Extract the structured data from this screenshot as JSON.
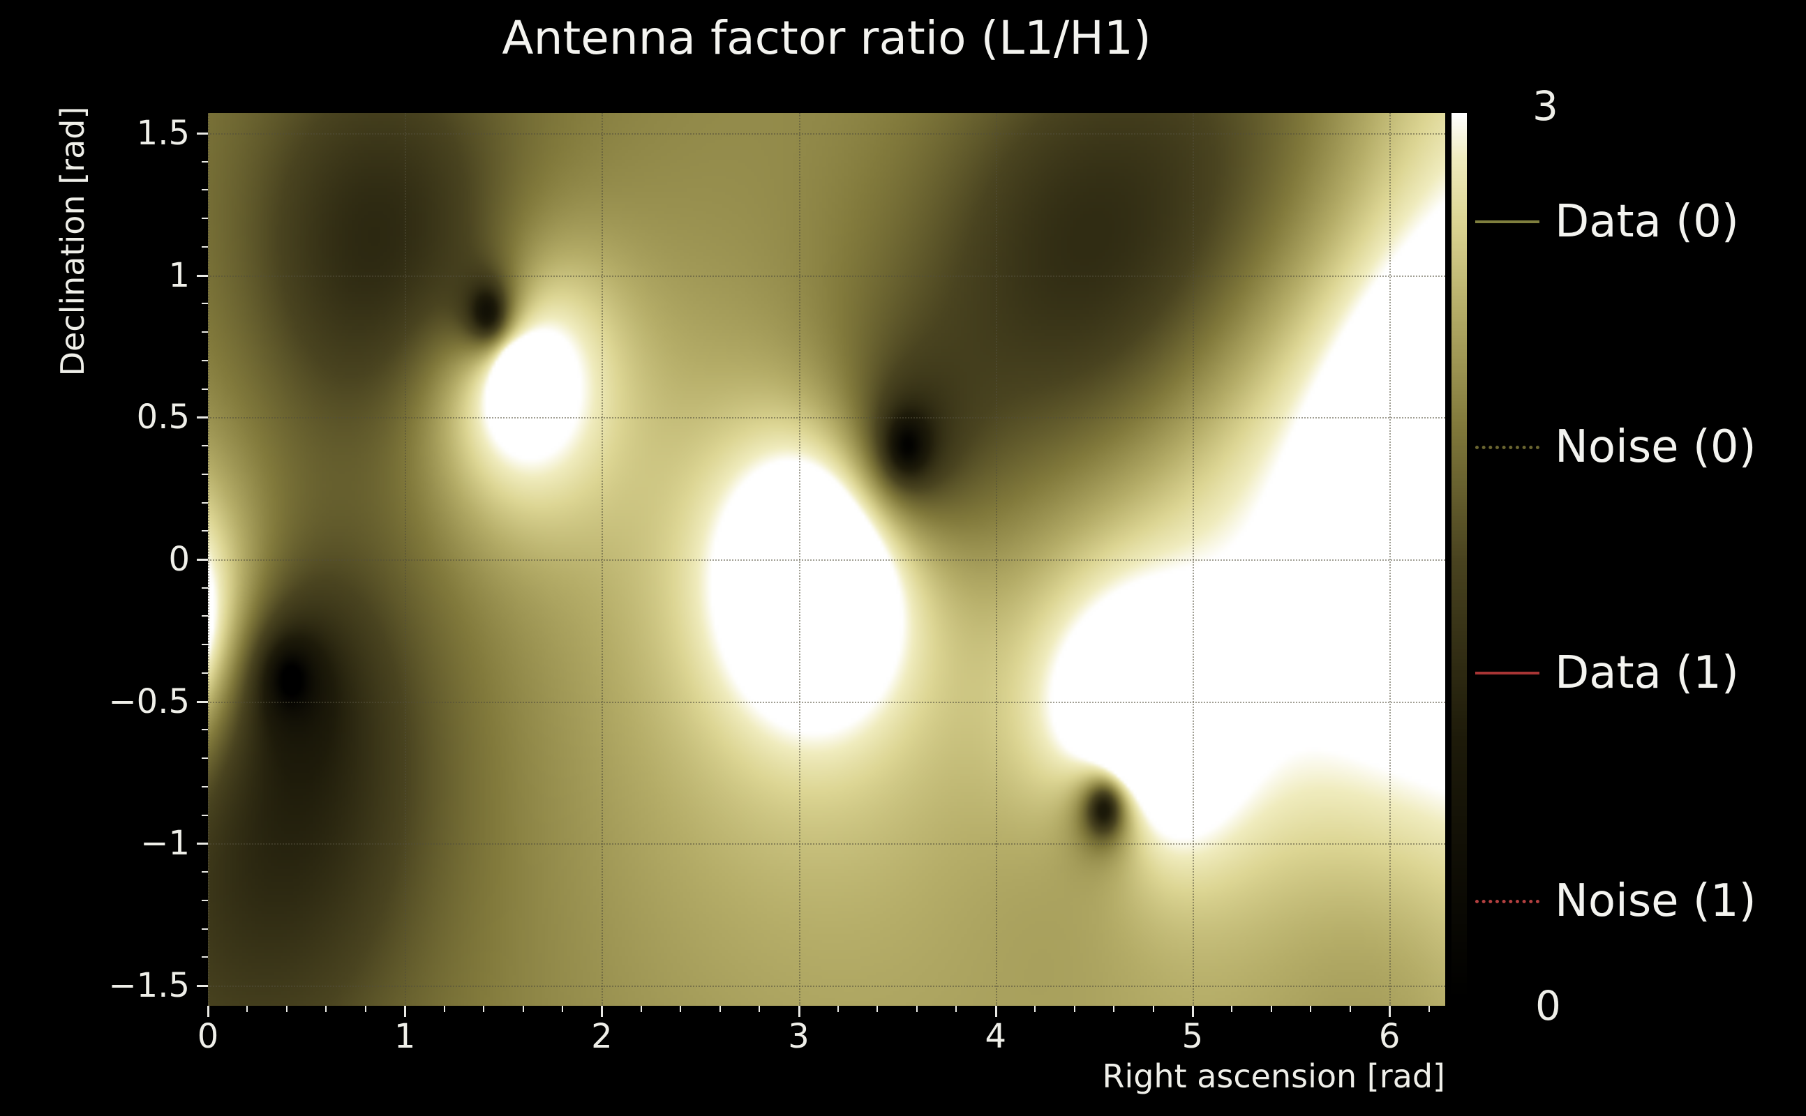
{
  "figure": {
    "background": "#000000",
    "text_color": "#f2f2ee"
  },
  "chart_data": {
    "type": "heatmap",
    "title": "Antenna factor ratio (L1/H1)",
    "xlabel": "Right ascension [rad]",
    "ylabel": "Declination [rad]",
    "xlim": [
      0,
      6.283
    ],
    "ylim": [
      -1.5708,
      1.5708
    ],
    "xticks": [
      0,
      1,
      2,
      3,
      4,
      5,
      6
    ],
    "xtick_labels": [
      "0",
      "1",
      "2",
      "3",
      "4",
      "5",
      "6"
    ],
    "yticks": [
      1.5,
      1,
      0.5,
      0,
      -0.5,
      -1,
      -1.5
    ],
    "ytick_labels": [
      "1.5",
      "1",
      "0.5",
      "0",
      "−0.5",
      "−1",
      "−1.5"
    ],
    "x_minor_step": 0.2,
    "y_minor_step": 0.1,
    "grid": true,
    "colorbar": {
      "tick_top": "3",
      "tick_bottom": "0",
      "clim": [
        0,
        3
      ]
    },
    "colormap": {
      "name": "black-olive-khaki-white",
      "stops": [
        [
          0.0,
          "#000000"
        ],
        [
          0.3,
          "#1e1b0a"
        ],
        [
          0.5,
          "#4a4420"
        ],
        [
          0.65,
          "#827a3c"
        ],
        [
          0.78,
          "#b5ad68"
        ],
        [
          0.88,
          "#ddd694"
        ],
        [
          0.95,
          "#f0ecbe"
        ],
        [
          1.0,
          "#ffffff"
        ]
      ]
    },
    "field_model": {
      "description": "Magnitude ratio of L1 to H1 antenna factors over the sky; dark points are L1 nulls, saturated bright spots are H1 nulls.",
      "amplitude": 3.4,
      "exponent": 0.3,
      "null_sharpness": 0.08,
      "zeros": [
        [
          1.42,
          0.87
        ],
        [
          3.55,
          0.4
        ],
        [
          0.42,
          -0.42
        ],
        [
          4.55,
          -0.88
        ]
      ],
      "poles": [
        [
          1.55,
          0.68
        ],
        [
          3.1,
          -0.05
        ],
        [
          4.68,
          -0.65
        ],
        [
          -0.2,
          -0.25
        ],
        [
          6.45,
          0.3
        ]
      ],
      "pole_glow": {
        "amp": 1.1,
        "sigma": 0.35
      },
      "shades": [
        [
          4.45,
          1.05,
          0.95,
          0.55
        ],
        [
          0.85,
          1.1,
          0.8,
          0.45
        ],
        [
          5.35,
          1.45,
          0.85,
          0.65
        ],
        [
          0.35,
          -0.85,
          0.55,
          0.5
        ],
        [
          0.1,
          -1.4,
          0.35,
          0.6
        ],
        [
          5.95,
          -1.45,
          0.45,
          0.55
        ]
      ]
    },
    "legend": [
      {
        "label": "Data (0)",
        "color": "#7f7f3e",
        "style": "solid"
      },
      {
        "label": "Noise (0)",
        "color": "#6a6530",
        "style": "dotted"
      },
      {
        "label": "Data (1)",
        "color": "#a83535",
        "style": "solid"
      },
      {
        "label": "Noise (1)",
        "color": "#b44040",
        "style": "dotted"
      }
    ]
  }
}
